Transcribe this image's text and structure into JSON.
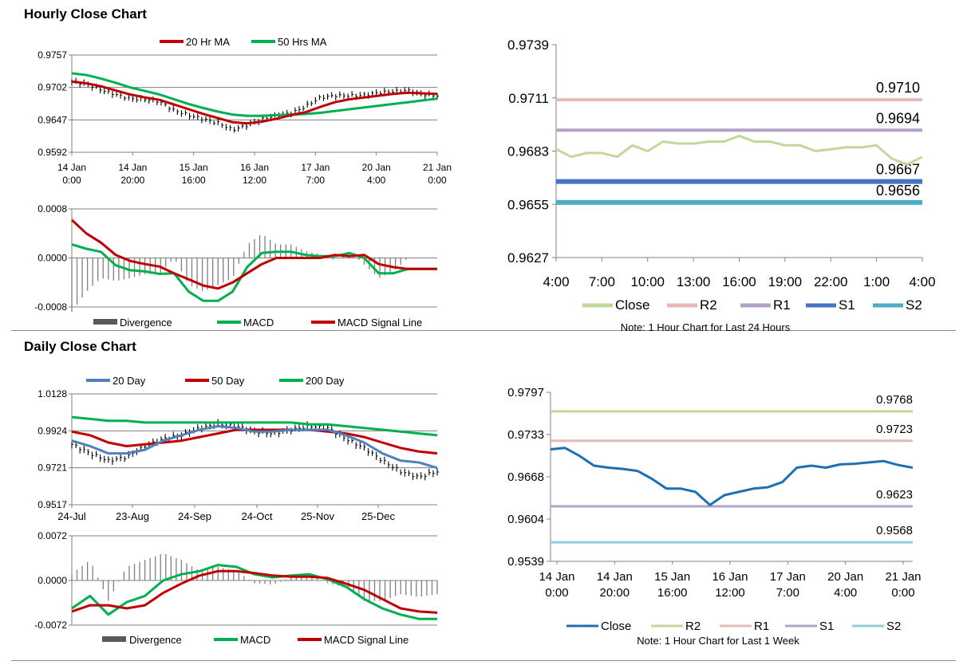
{
  "sections": {
    "hourly_title": "Hourly Close Chart",
    "daily_title": "Daily Close Chart"
  },
  "colors": {
    "red": "#c00000",
    "green": "#00b050",
    "blue": "#4f81bd",
    "gray": "#7f7f7f",
    "close_light": "#c4d79b",
    "r2_pink": "#e6b9b8",
    "r1_purple": "#b3a2c7",
    "s1_blue": "#4472c4",
    "s2_teal": "#4bacc6",
    "close_dark": "#1f6fb4",
    "s2_light": "#92cddc",
    "divergence": "#595959"
  },
  "chart_data": [
    {
      "id": "hourly_price",
      "type": "line",
      "x_tick_labels": [
        [
          "14 Jan",
          "0:00"
        ],
        [
          "14 Jan",
          "20:00"
        ],
        [
          "15 Jan",
          "16:00"
        ],
        [
          "16 Jan",
          "12:00"
        ],
        [
          "17 Jan",
          "7:00"
        ],
        [
          "20 Jan",
          "4:00"
        ],
        [
          "21 Jan",
          "0:00"
        ]
      ],
      "y_ticks": [
        "0.9757",
        "0.9702",
        "0.9647",
        "0.9592"
      ],
      "ylim": [
        0.9592,
        0.9757
      ],
      "legend": [
        "20 Hr MA",
        "50 Hrs MA"
      ],
      "x": [
        0,
        0.04,
        0.08,
        0.12,
        0.16,
        0.2,
        0.24,
        0.28,
        0.32,
        0.36,
        0.4,
        0.44,
        0.48,
        0.52,
        0.56,
        0.6,
        0.64,
        0.68,
        0.72,
        0.76,
        0.8,
        0.84,
        0.88,
        0.92,
        0.96,
        1.0
      ],
      "series": [
        {
          "name": "Close",
          "values": [
            0.9712,
            0.9708,
            0.9698,
            0.969,
            0.9683,
            0.9682,
            0.9678,
            0.9663,
            0.9655,
            0.9648,
            0.9642,
            0.963,
            0.9638,
            0.9648,
            0.9655,
            0.9658,
            0.967,
            0.9685,
            0.9688,
            0.9688,
            0.9689,
            0.9693,
            0.9695,
            0.9697,
            0.969,
            0.9688
          ]
        },
        {
          "name": "20 Hr MA",
          "values": [
            0.9712,
            0.9709,
            0.9704,
            0.9697,
            0.969,
            0.9685,
            0.9681,
            0.9673,
            0.9665,
            0.9657,
            0.965,
            0.9643,
            0.9641,
            0.9644,
            0.9649,
            0.9655,
            0.966,
            0.9669,
            0.9677,
            0.9682,
            0.9685,
            0.9688,
            0.9691,
            0.9693,
            0.9692,
            0.9691
          ]
        },
        {
          "name": "50 Hrs MA",
          "values": [
            0.9726,
            0.9723,
            0.9717,
            0.971,
            0.9702,
            0.9696,
            0.969,
            0.9682,
            0.9674,
            0.9667,
            0.9661,
            0.9656,
            0.9654,
            0.9654,
            0.9655,
            0.9656,
            0.9657,
            0.9659,
            0.9662,
            0.9665,
            0.9668,
            0.9671,
            0.9674,
            0.9677,
            0.968,
            0.9683
          ]
        }
      ]
    },
    {
      "id": "hourly_macd",
      "type": "line",
      "y_ticks": [
        "0.0008",
        "0.0000",
        "-0.0008"
      ],
      "ylim": [
        -0.0008,
        0.0008
      ],
      "legend": [
        "Divergence",
        "MACD",
        "MACD Signal Line"
      ],
      "x": [
        0,
        0.04,
        0.08,
        0.12,
        0.16,
        0.2,
        0.24,
        0.28,
        0.32,
        0.36,
        0.4,
        0.44,
        0.48,
        0.52,
        0.56,
        0.6,
        0.64,
        0.68,
        0.72,
        0.76,
        0.8,
        0.84,
        0.88,
        0.92,
        0.96,
        1.0
      ],
      "series": [
        {
          "name": "MACD",
          "values": [
            0.00022,
            0.00015,
            0.0001,
            -0.00012,
            -0.0002,
            -0.00022,
            -0.00026,
            -0.00025,
            -0.00055,
            -0.0007,
            -0.0007,
            -0.00055,
            -0.00015,
            8e-05,
            0.0001,
            0.0001,
            5e-05,
            3e-05,
            3e-05,
            8e-05,
            0.0,
            -0.00025,
            -0.00025,
            -0.00018,
            -0.00018,
            -0.00018
          ]
        },
        {
          "name": "MACD Signal Line",
          "values": [
            0.00062,
            0.0004,
            0.00025,
            5e-05,
            -5e-05,
            -0.0001,
            -0.00014,
            -0.00025,
            -0.00035,
            -0.00045,
            -0.0005,
            -0.0004,
            -0.00025,
            -0.0001,
            0.0,
            0.0,
            0.0,
            0.0,
            5e-05,
            3e-05,
            5e-05,
            -0.0001,
            -0.00015,
            -0.00018,
            -0.00018,
            -0.00018
          ]
        }
      ]
    },
    {
      "id": "hourly_24h",
      "type": "line",
      "x_tick_labels": [
        "4:00",
        "7:00",
        "10:00",
        "13:00",
        "16:00",
        "19:00",
        "22:00",
        "1:00",
        "4:00"
      ],
      "y_ticks": [
        "0.9739",
        "0.9711",
        "0.9683",
        "0.9655",
        "0.9627"
      ],
      "ylim": [
        0.9627,
        0.9739
      ],
      "legend": [
        "Close",
        "R2",
        "R1",
        "S1",
        "S2"
      ],
      "note": "Note: 1 Hour Chart for Last 24 Hours",
      "levels": [
        {
          "name": "R2",
          "value": 0.971,
          "label": "0.9710"
        },
        {
          "name": "R1",
          "value": 0.9694,
          "label": "0.9694"
        },
        {
          "name": "S1",
          "value": 0.9667,
          "label": "0.9667"
        },
        {
          "name": "S2",
          "value": 0.9656,
          "label": "0.9656"
        }
      ],
      "close": [
        0.9684,
        0.968,
        0.9682,
        0.9682,
        0.968,
        0.9686,
        0.9683,
        0.9688,
        0.9687,
        0.9687,
        0.9688,
        0.9688,
        0.9691,
        0.9688,
        0.9688,
        0.9686,
        0.9686,
        0.9683,
        0.9684,
        0.9685,
        0.9685,
        0.9686,
        0.9679,
        0.9676,
        0.968
      ]
    },
    {
      "id": "daily_price",
      "type": "line",
      "x_tick_labels": [
        "24-Jul",
        "23-Aug",
        "24-Sep",
        "24-Oct",
        "25-Nov",
        "25-Dec"
      ],
      "y_ticks": [
        "1.0128",
        "0.9924",
        "0.9721",
        "0.9517"
      ],
      "ylim": [
        0.9517,
        1.0128
      ],
      "legend": [
        "20 Day",
        "50 Day",
        "200 Day"
      ],
      "x": [
        0,
        0.05,
        0.1,
        0.15,
        0.2,
        0.25,
        0.3,
        0.35,
        0.4,
        0.45,
        0.5,
        0.55,
        0.6,
        0.65,
        0.7,
        0.75,
        0.8,
        0.85,
        0.9,
        0.95,
        1.0
      ],
      "series": [
        {
          "name": "Close",
          "values": [
            0.985,
            0.98,
            0.976,
            0.978,
            0.984,
            0.988,
            0.99,
            0.994,
            0.996,
            0.995,
            0.992,
            0.991,
            0.993,
            0.995,
            0.994,
            0.988,
            0.983,
            0.976,
            0.97,
            0.967,
            0.97
          ]
        },
        {
          "name": "20 Day",
          "values": [
            0.987,
            0.984,
            0.98,
            0.98,
            0.982,
            0.987,
            0.99,
            0.993,
            0.995,
            0.994,
            0.992,
            0.992,
            0.993,
            0.993,
            0.993,
            0.99,
            0.986,
            0.98,
            0.976,
            0.975,
            0.972
          ]
        },
        {
          "name": "50 Day",
          "values": [
            0.992,
            0.99,
            0.986,
            0.984,
            0.985,
            0.986,
            0.987,
            0.989,
            0.991,
            0.993,
            0.993,
            0.993,
            0.993,
            0.993,
            0.992,
            0.991,
            0.989,
            0.986,
            0.983,
            0.981,
            0.98
          ]
        },
        {
          "name": "200 Day",
          "values": [
            1.0,
            0.999,
            0.998,
            0.998,
            0.997,
            0.997,
            0.997,
            0.997,
            0.997,
            0.997,
            0.997,
            0.997,
            0.997,
            0.996,
            0.996,
            0.995,
            0.994,
            0.993,
            0.992,
            0.991,
            0.99
          ]
        }
      ]
    },
    {
      "id": "daily_macd",
      "type": "line",
      "y_ticks": [
        "0.0072",
        "0.0000",
        "-0.0072"
      ],
      "ylim": [
        -0.0072,
        0.0072
      ],
      "legend": [
        "Divergence",
        "MACD",
        "MACD Signal Line"
      ],
      "x": [
        0,
        0.05,
        0.1,
        0.15,
        0.2,
        0.25,
        0.3,
        0.35,
        0.4,
        0.45,
        0.5,
        0.55,
        0.6,
        0.65,
        0.7,
        0.75,
        0.8,
        0.85,
        0.9,
        0.95,
        1.0
      ],
      "series": [
        {
          "name": "MACD",
          "values": [
            -0.0045,
            -0.0025,
            -0.0055,
            -0.0035,
            -0.0025,
            0.0,
            0.001,
            0.0015,
            0.0025,
            0.0022,
            0.001,
            0.0005,
            0.0008,
            0.001,
            0.0002,
            -0.001,
            -0.003,
            -0.0045,
            -0.0055,
            -0.0062,
            -0.0062
          ]
        },
        {
          "name": "MACD Signal Line",
          "values": [
            -0.005,
            -0.004,
            -0.004,
            -0.0045,
            -0.004,
            -0.002,
            -0.0005,
            0.0008,
            0.0015,
            0.0015,
            0.0012,
            0.0008,
            0.0006,
            0.0006,
            0.0004,
            -0.0005,
            -0.0015,
            -0.003,
            -0.0045,
            -0.005,
            -0.0052
          ]
        }
      ]
    },
    {
      "id": "weekly_hourly",
      "type": "line",
      "x_tick_labels": [
        [
          "14 Jan",
          "0:00"
        ],
        [
          "14 Jan",
          "20:00"
        ],
        [
          "15 Jan",
          "16:00"
        ],
        [
          "16 Jan",
          "12:00"
        ],
        [
          "17 Jan",
          "7:00"
        ],
        [
          "20 Jan",
          "4:00"
        ],
        [
          "21 Jan",
          "0:00"
        ]
      ],
      "y_ticks": [
        "0.9797",
        "0.9733",
        "0.9668",
        "0.9604",
        "0.9539"
      ],
      "ylim": [
        0.9539,
        0.9797
      ],
      "legend": [
        "Close",
        "R2",
        "R1",
        "S1",
        "S2"
      ],
      "note": "Note: 1 Hour Chart for Last 1 Week",
      "levels": [
        {
          "name": "R2",
          "value": 0.9768,
          "label": "0.9768"
        },
        {
          "name": "R1",
          "value": 0.9723,
          "label": "0.9723"
        },
        {
          "name": "S1",
          "value": 0.9623,
          "label": "0.9623"
        },
        {
          "name": "S2",
          "value": 0.9568,
          "label": "0.9568"
        }
      ],
      "x": [
        0,
        0.04,
        0.08,
        0.12,
        0.16,
        0.2,
        0.24,
        0.28,
        0.32,
        0.36,
        0.4,
        0.44,
        0.48,
        0.52,
        0.56,
        0.6,
        0.64,
        0.68,
        0.72,
        0.76,
        0.8,
        0.84,
        0.88,
        0.92,
        0.96,
        1.0
      ],
      "close": [
        0.971,
        0.9712,
        0.97,
        0.9685,
        0.9682,
        0.968,
        0.9677,
        0.9665,
        0.965,
        0.965,
        0.9645,
        0.9625,
        0.964,
        0.9645,
        0.965,
        0.9652,
        0.966,
        0.9682,
        0.9685,
        0.9682,
        0.9687,
        0.9688,
        0.969,
        0.9692,
        0.9686,
        0.9682
      ]
    }
  ]
}
